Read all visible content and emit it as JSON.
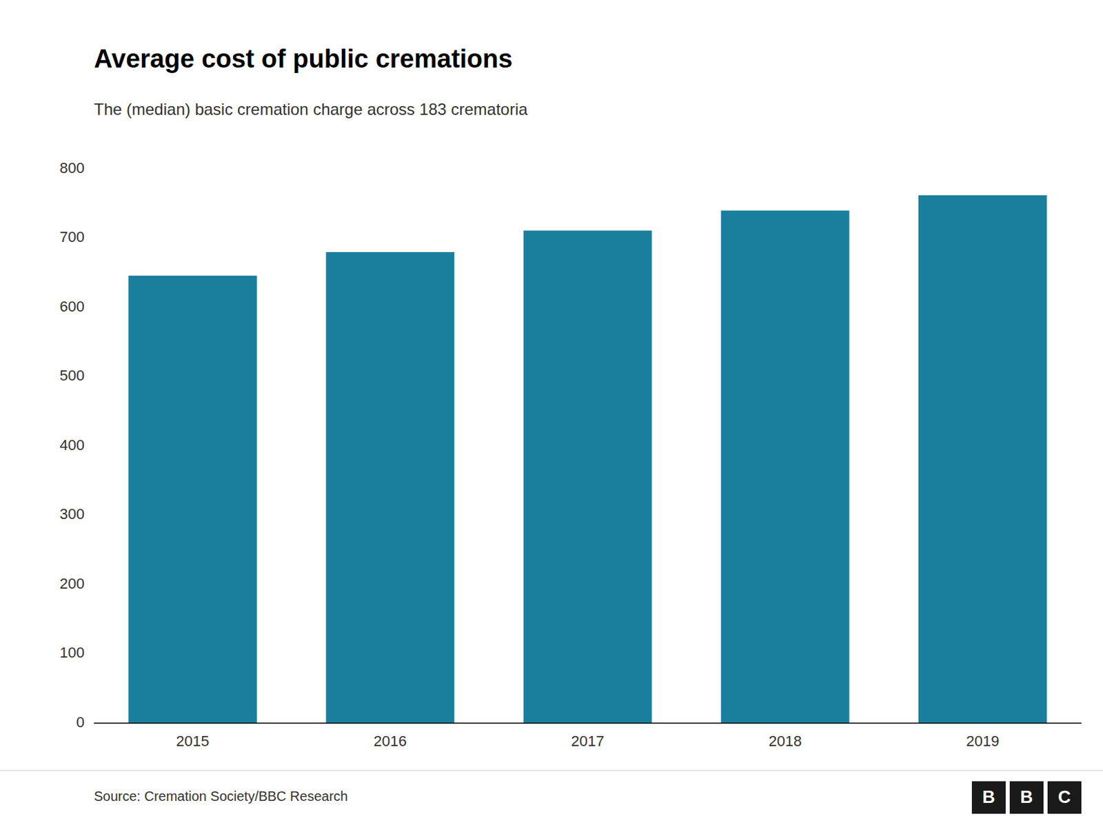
{
  "chart_data": {
    "type": "bar",
    "title": "Average cost of public cremations",
    "subtitle": "The (median) basic cremation charge across 183 crematoria",
    "source": "Source: Cremation Society/BBC Research",
    "logo": [
      "B",
      "B",
      "C"
    ],
    "categories": [
      "2015",
      "2016",
      "2017",
      "2018",
      "2019"
    ],
    "values": [
      646,
      680,
      711,
      740,
      762
    ],
    "color": "#1a7f9c",
    "ylim": [
      0,
      800
    ],
    "yticks": [
      0,
      100,
      200,
      300,
      400,
      500,
      600,
      700,
      800
    ],
    "grid": false
  }
}
